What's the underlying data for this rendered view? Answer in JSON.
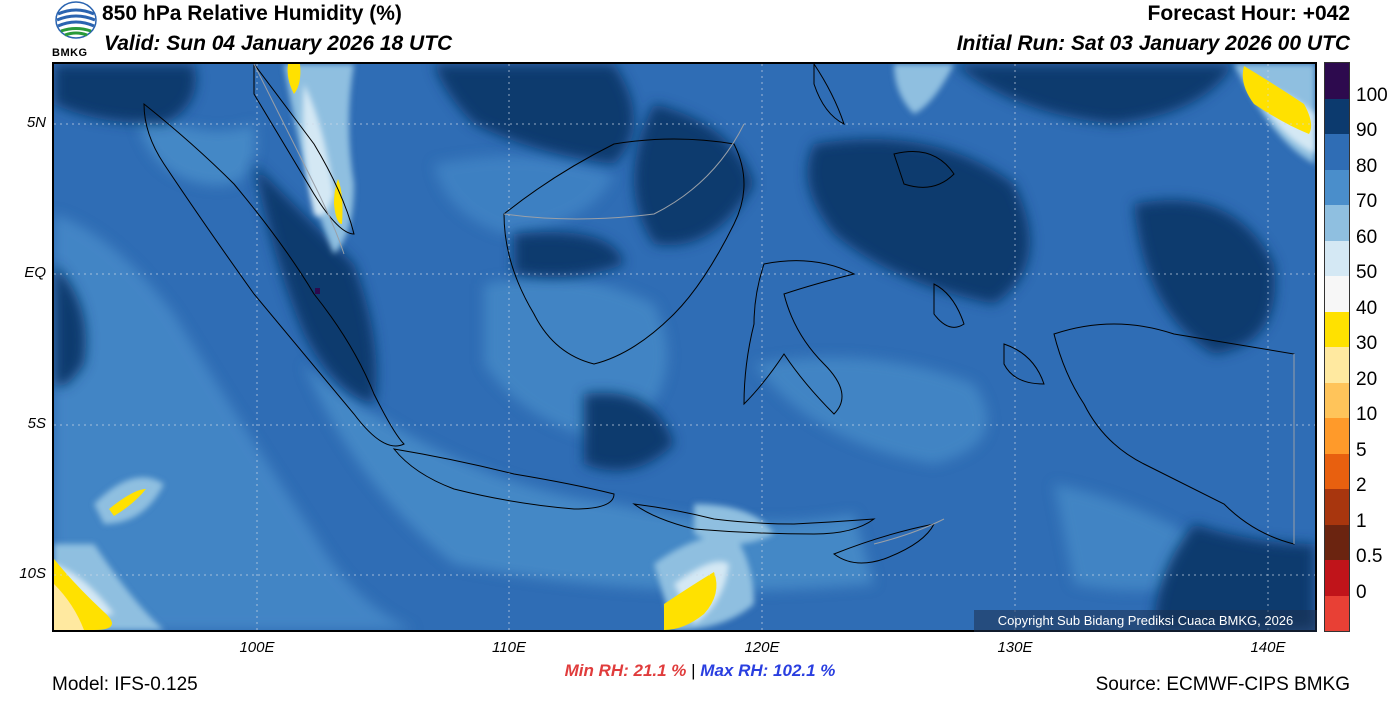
{
  "header": {
    "title": "850 hPa Relative Humidity (%)",
    "valid": "Valid: Sun 04 January 2026 18 UTC",
    "forecast_hour": "Forecast Hour: +042",
    "initial_run": "Initial Run: Sat 03 January 2026 00 UTC",
    "logo_text": "BMKG"
  },
  "map": {
    "lat_labels": [
      "5N",
      "EQ",
      "5S",
      "10S"
    ],
    "lon_labels": [
      "100E",
      "110E",
      "120E",
      "130E",
      "140E"
    ],
    "copyright": "Copyright Sub Bidang Prediksi Cuaca BMKG, 2026"
  },
  "colorbar": {
    "labels": [
      "100",
      "90",
      "80",
      "70",
      "60",
      "50",
      "40",
      "30",
      "20",
      "10",
      "5",
      "2",
      "1",
      "0.5",
      "0"
    ],
    "colors": [
      "#2d0a4e",
      "#0c3a6e",
      "#2f6db5",
      "#4a8ecb",
      "#8fbfe0",
      "#d4e8f4",
      "#f7f7f7",
      "#ffe100",
      "#ffe9a0",
      "#ffc45a",
      "#ff9a2a",
      "#e8600f",
      "#a8360e",
      "#6b2410",
      "#c0141a",
      "#e84035"
    ]
  },
  "footer": {
    "min_rh": "Min RH:  21.1 %",
    "separator": " | ",
    "max_rh": "Max RH: 102.1 %",
    "model": "Model: IFS-0.125",
    "source": "Source: ECMWF-CIPS BMKG"
  }
}
